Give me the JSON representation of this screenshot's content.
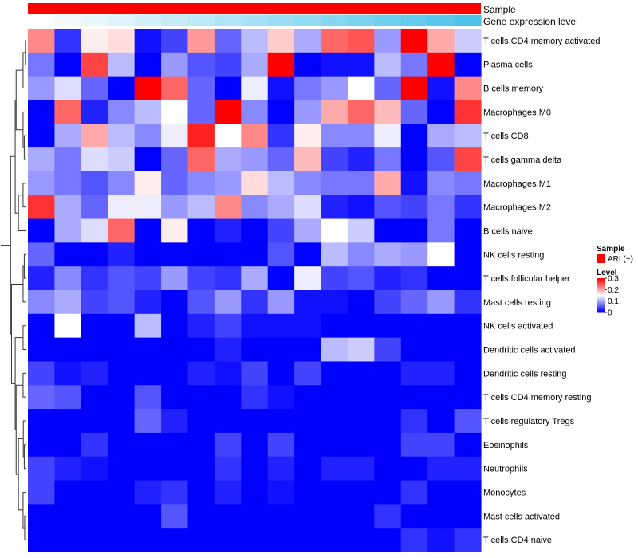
{
  "chart_data": {
    "type": "heatmap",
    "annotation_tracks": [
      {
        "name": "Sample",
        "value": "ARL(+)",
        "color": "#ff0000"
      },
      {
        "name": "Gene expression level",
        "gradient": [
          "#ffffff",
          "#4dc3ea"
        ]
      }
    ],
    "rows": [
      "T cells CD4 memory activated",
      "Plasma cells",
      "B cells memory",
      "Macrophages M0",
      "T cells CD8",
      "T cells gamma delta",
      "Macrophages M1",
      "Macrophages M2",
      "B cells naive",
      "NK cells resting",
      "T cells follicular helper",
      "Mast cells resting",
      "NK cells activated",
      "Dendritic cells activated",
      "Dendritic cells resting",
      "T cells CD4 memory resting",
      "T cells regulatory  Tregs",
      "Eosinophils",
      "Neutrophils",
      "Monocytes",
      "Mast cells activated",
      "T cells CD4 naive"
    ],
    "values": [
      [
        0.22,
        0.03,
        0.16,
        0.17,
        0.01,
        0.04,
        0.21,
        0.06,
        0.11,
        0.18,
        0.1,
        0.24,
        0.25,
        0.09,
        0.3,
        0.2,
        0.12
      ],
      [
        0.07,
        0.0,
        0.26,
        0.11,
        0.0,
        0.09,
        0.05,
        0.04,
        0.1,
        0.3,
        0.0,
        0.01,
        0.01,
        0.11,
        0.07,
        0.3,
        0.0
      ],
      [
        0.09,
        0.13,
        0.06,
        0.0,
        0.3,
        0.24,
        0.06,
        0.0,
        0.14,
        0.01,
        0.07,
        0.09,
        0.15,
        0.06,
        0.3,
        0.01,
        0.22
      ],
      [
        0.0,
        0.24,
        0.02,
        0.08,
        0.11,
        0.15,
        0.06,
        0.3,
        0.08,
        0.0,
        0.09,
        0.2,
        0.24,
        0.19,
        0.06,
        0.0,
        0.27
      ],
      [
        0.0,
        0.1,
        0.2,
        0.11,
        0.08,
        0.14,
        0.28,
        0.15,
        0.22,
        0.03,
        0.16,
        0.08,
        0.08,
        0.14,
        0.0,
        0.1,
        0.11
      ],
      [
        0.1,
        0.07,
        0.13,
        0.12,
        0.0,
        0.06,
        0.24,
        0.1,
        0.09,
        0.06,
        0.19,
        0.04,
        0.02,
        0.07,
        0.0,
        0.05,
        0.26
      ],
      [
        0.09,
        0.07,
        0.05,
        0.08,
        0.16,
        0.06,
        0.08,
        0.09,
        0.17,
        0.11,
        0.08,
        0.07,
        0.07,
        0.2,
        0.01,
        0.08,
        0.07
      ],
      [
        0.27,
        0.1,
        0.06,
        0.14,
        0.14,
        0.09,
        0.11,
        0.22,
        0.08,
        0.1,
        0.13,
        0.02,
        0.01,
        0.05,
        0.04,
        0.07,
        0.03
      ],
      [
        0.0,
        0.1,
        0.13,
        0.24,
        0.0,
        0.16,
        0.0,
        0.02,
        0.0,
        0.04,
        0.1,
        0.15,
        0.12,
        0.0,
        0.0,
        0.07,
        0.0
      ],
      [
        0.06,
        0.0,
        0.0,
        0.02,
        0.0,
        0.0,
        0.0,
        0.0,
        0.0,
        0.05,
        0.0,
        0.11,
        0.08,
        0.1,
        0.09,
        0.15,
        0.0
      ],
      [
        0.02,
        0.08,
        0.03,
        0.05,
        0.04,
        0.09,
        0.04,
        0.03,
        0.1,
        0.0,
        0.14,
        0.04,
        0.05,
        0.02,
        0.03,
        0.0,
        0.0
      ],
      [
        0.08,
        0.1,
        0.04,
        0.05,
        0.02,
        0.0,
        0.05,
        0.09,
        0.03,
        0.09,
        0.01,
        0.01,
        0.0,
        0.04,
        0.06,
        0.09,
        0.03
      ],
      [
        0.0,
        0.15,
        0.0,
        0.0,
        0.11,
        0.0,
        0.02,
        0.04,
        0.01,
        0.01,
        0.01,
        0.0,
        0.0,
        0.0,
        0.0,
        0.0,
        0.0
      ],
      [
        0.0,
        0.0,
        0.0,
        0.0,
        0.0,
        0.0,
        0.0,
        0.02,
        0.0,
        0.0,
        0.0,
        0.11,
        0.12,
        0.04,
        0.0,
        0.0,
        0.0
      ],
      [
        0.04,
        0.01,
        0.02,
        0.0,
        0.0,
        0.0,
        0.02,
        0.01,
        0.04,
        0.0,
        0.04,
        0.0,
        0.0,
        0.0,
        0.02,
        0.02,
        0.0
      ],
      [
        0.06,
        0.05,
        0.0,
        0.0,
        0.05,
        0.0,
        0.0,
        0.0,
        0.03,
        0.01,
        0.0,
        0.0,
        0.0,
        0.0,
        0.0,
        0.0,
        0.0
      ],
      [
        0.0,
        0.0,
        0.0,
        0.0,
        0.06,
        0.02,
        0.0,
        0.0,
        0.0,
        0.0,
        0.0,
        0.0,
        0.0,
        0.0,
        0.03,
        0.0,
        0.05
      ],
      [
        0.0,
        0.0,
        0.03,
        0.0,
        0.0,
        0.0,
        0.0,
        0.04,
        0.0,
        0.04,
        0.0,
        0.0,
        0.0,
        0.0,
        0.04,
        0.04,
        0.0
      ],
      [
        0.04,
        0.02,
        0.01,
        0.0,
        0.0,
        0.0,
        0.0,
        0.03,
        0.0,
        0.02,
        0.0,
        0.02,
        0.02,
        0.0,
        0.0,
        0.02,
        0.02
      ],
      [
        0.04,
        0.0,
        0.0,
        0.0,
        0.02,
        0.03,
        0.0,
        0.02,
        0.0,
        0.01,
        0.0,
        0.0,
        0.0,
        0.0,
        0.03,
        0.0,
        0.0
      ],
      [
        0.0,
        0.0,
        0.0,
        0.0,
        0.0,
        0.05,
        0.0,
        0.0,
        0.0,
        0.0,
        0.0,
        0.0,
        0.0,
        0.03,
        0.0,
        0.0,
        0.0
      ],
      [
        0.0,
        0.0,
        0.0,
        0.0,
        0.0,
        0.0,
        0.0,
        0.0,
        0.0,
        0.0,
        0.0,
        0.0,
        0.0,
        0.0,
        0.03,
        0.01,
        0.03
      ]
    ],
    "column_count": 17,
    "color_scale": {
      "min": 0,
      "max": 0.3,
      "low": "#0000ff",
      "mid": "#ffffff",
      "high": "#ff0000"
    },
    "legend": {
      "sample_title": "Sample",
      "sample_label": "ARL(+)",
      "level_title": "Level",
      "ticks": [
        "0.3",
        "0.2",
        "0.1",
        "0"
      ]
    },
    "dendrogram": "row-side"
  }
}
